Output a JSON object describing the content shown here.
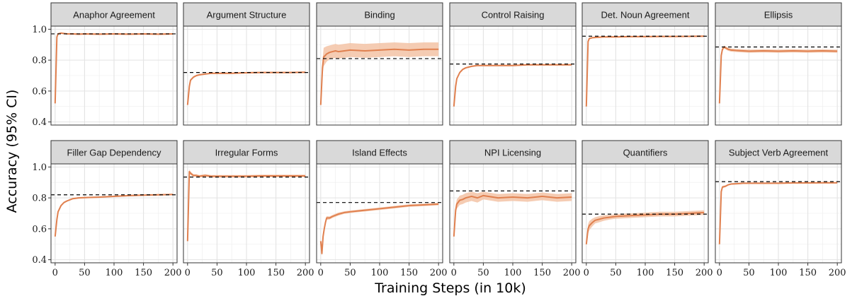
{
  "chart_data": {
    "type": "line",
    "layout": "facet-grid",
    "xlabel": "Training Steps (in 10k)",
    "ylabel": "Accuracy (95% CI)",
    "xlim": [
      -7,
      207
    ],
    "ylim": [
      0.38,
      1.02
    ],
    "x_ticks": [
      0,
      50,
      100,
      150,
      200
    ],
    "y_ticks": [
      0.4,
      0.6,
      0.8,
      1.0
    ],
    "y_tick_labels": [
      "0.4",
      "0.6",
      "0.8",
      "1.0"
    ],
    "grid": true,
    "line_color": "#e0804f",
    "band_color": "#f3c3a6",
    "reference_line_style": "dashed-black",
    "panels": [
      {
        "title": "Anaphor Agreement",
        "reference": 0.97,
        "x": [
          0,
          3,
          5,
          10,
          20,
          30,
          40,
          50,
          75,
          100,
          125,
          150,
          175,
          200
        ],
        "y": [
          0.52,
          0.95,
          0.97,
          0.975,
          0.97,
          0.97,
          0.968,
          0.97,
          0.968,
          0.97,
          0.968,
          0.97,
          0.968,
          0.97
        ],
        "ci": [
          0.005,
          0.01,
          0.005,
          0.005,
          0.005,
          0.005,
          0.005,
          0.005,
          0.005,
          0.005,
          0.005,
          0.005,
          0.005,
          0.005
        ]
      },
      {
        "title": "Argument Structure",
        "reference": 0.72,
        "x": [
          0,
          3,
          5,
          10,
          15,
          20,
          30,
          40,
          50,
          75,
          100,
          125,
          150,
          175,
          200
        ],
        "y": [
          0.51,
          0.63,
          0.67,
          0.69,
          0.7,
          0.705,
          0.71,
          0.715,
          0.715,
          0.715,
          0.718,
          0.72,
          0.72,
          0.72,
          0.722
        ],
        "ci": [
          0.005,
          0.01,
          0.008,
          0.005,
          0.005,
          0.005,
          0.005,
          0.005,
          0.005,
          0.005,
          0.005,
          0.005,
          0.005,
          0.005,
          0.005
        ]
      },
      {
        "title": "Binding",
        "reference": 0.81,
        "x": [
          0,
          3,
          5,
          10,
          15,
          20,
          25,
          30,
          40,
          50,
          75,
          100,
          125,
          150,
          175,
          200
        ],
        "y": [
          0.51,
          0.75,
          0.82,
          0.84,
          0.85,
          0.855,
          0.86,
          0.855,
          0.86,
          0.865,
          0.86,
          0.865,
          0.87,
          0.865,
          0.87,
          0.87
        ],
        "ci": [
          0.01,
          0.05,
          0.06,
          0.05,
          0.045,
          0.045,
          0.045,
          0.045,
          0.045,
          0.045,
          0.045,
          0.045,
          0.045,
          0.045,
          0.045,
          0.045
        ]
      },
      {
        "title": "Control Raising",
        "reference": 0.775,
        "x": [
          0,
          3,
          5,
          10,
          15,
          20,
          30,
          40,
          50,
          75,
          100,
          125,
          150,
          175,
          200
        ],
        "y": [
          0.5,
          0.63,
          0.68,
          0.72,
          0.74,
          0.75,
          0.76,
          0.765,
          0.765,
          0.765,
          0.765,
          0.77,
          0.77,
          0.77,
          0.77
        ],
        "ci": [
          0.005,
          0.01,
          0.008,
          0.006,
          0.005,
          0.005,
          0.005,
          0.005,
          0.005,
          0.005,
          0.005,
          0.005,
          0.005,
          0.005,
          0.005
        ]
      },
      {
        "title": "Det. Noun Agreement",
        "reference": 0.955,
        "x": [
          0,
          3,
          5,
          10,
          20,
          30,
          50,
          75,
          100,
          125,
          150,
          175,
          200
        ],
        "y": [
          0.5,
          0.92,
          0.94,
          0.945,
          0.948,
          0.95,
          0.95,
          0.952,
          0.952,
          0.953,
          0.953,
          0.954,
          0.955
        ],
        "ci": [
          0.005,
          0.01,
          0.006,
          0.005,
          0.005,
          0.005,
          0.005,
          0.005,
          0.005,
          0.005,
          0.005,
          0.005,
          0.005
        ]
      },
      {
        "title": "Ellipsis",
        "reference": 0.885,
        "x": [
          0,
          3,
          5,
          8,
          10,
          15,
          20,
          30,
          40,
          50,
          75,
          100,
          125,
          150,
          175,
          200
        ],
        "y": [
          0.52,
          0.83,
          0.87,
          0.885,
          0.88,
          0.87,
          0.865,
          0.862,
          0.86,
          0.858,
          0.86,
          0.858,
          0.86,
          0.858,
          0.86,
          0.858
        ],
        "ci": [
          0.01,
          0.015,
          0.012,
          0.01,
          0.01,
          0.01,
          0.01,
          0.01,
          0.01,
          0.01,
          0.01,
          0.01,
          0.01,
          0.01,
          0.01,
          0.01
        ]
      },
      {
        "title": "Filler Gap Dependency",
        "reference": 0.82,
        "x": [
          0,
          3,
          5,
          10,
          15,
          20,
          30,
          40,
          50,
          75,
          100,
          125,
          150,
          175,
          200
        ],
        "y": [
          0.55,
          0.66,
          0.71,
          0.75,
          0.77,
          0.78,
          0.795,
          0.8,
          0.802,
          0.805,
          0.81,
          0.815,
          0.818,
          0.82,
          0.822
        ],
        "ci": [
          0.005,
          0.01,
          0.008,
          0.006,
          0.005,
          0.005,
          0.005,
          0.005,
          0.005,
          0.005,
          0.005,
          0.005,
          0.005,
          0.005,
          0.005
        ]
      },
      {
        "title": "Irregular Forms",
        "reference": 0.935,
        "x": [
          0,
          3,
          5,
          8,
          10,
          15,
          20,
          30,
          40,
          50,
          75,
          100,
          125,
          150,
          175,
          200
        ],
        "y": [
          0.52,
          0.97,
          0.96,
          0.95,
          0.945,
          0.945,
          0.94,
          0.945,
          0.94,
          0.94,
          0.94,
          0.94,
          0.942,
          0.942,
          0.942,
          0.942
        ],
        "ci": [
          0.01,
          0.015,
          0.01,
          0.01,
          0.008,
          0.008,
          0.008,
          0.008,
          0.008,
          0.008,
          0.008,
          0.008,
          0.008,
          0.008,
          0.008,
          0.008
        ]
      },
      {
        "title": "Island Effects",
        "reference": 0.77,
        "x": [
          0,
          2,
          4,
          6,
          8,
          10,
          15,
          20,
          30,
          40,
          50,
          75,
          100,
          125,
          150,
          175,
          200
        ],
        "y": [
          0.52,
          0.44,
          0.55,
          0.6,
          0.64,
          0.67,
          0.67,
          0.68,
          0.695,
          0.705,
          0.71,
          0.72,
          0.73,
          0.74,
          0.75,
          0.755,
          0.76
        ],
        "ci": [
          0.015,
          0.015,
          0.02,
          0.015,
          0.015,
          0.012,
          0.01,
          0.01,
          0.01,
          0.008,
          0.008,
          0.008,
          0.008,
          0.008,
          0.008,
          0.008,
          0.008
        ]
      },
      {
        "title": "NPI Licensing",
        "reference": 0.845,
        "x": [
          0,
          3,
          5,
          10,
          15,
          20,
          25,
          30,
          40,
          50,
          75,
          100,
          125,
          150,
          175,
          200
        ],
        "y": [
          0.55,
          0.72,
          0.76,
          0.785,
          0.79,
          0.8,
          0.805,
          0.81,
          0.8,
          0.815,
          0.8,
          0.805,
          0.8,
          0.81,
          0.8,
          0.805
        ],
        "ci": [
          0.01,
          0.03,
          0.03,
          0.03,
          0.03,
          0.03,
          0.03,
          0.03,
          0.03,
          0.025,
          0.025,
          0.025,
          0.025,
          0.025,
          0.025,
          0.025
        ]
      },
      {
        "title": "Quantifiers",
        "reference": 0.695,
        "x": [
          0,
          3,
          5,
          10,
          15,
          20,
          30,
          40,
          50,
          75,
          100,
          125,
          150,
          175,
          200
        ],
        "y": [
          0.5,
          0.6,
          0.62,
          0.64,
          0.655,
          0.66,
          0.67,
          0.675,
          0.68,
          0.685,
          0.69,
          0.695,
          0.695,
          0.7,
          0.705
        ],
        "ci": [
          0.01,
          0.03,
          0.03,
          0.025,
          0.02,
          0.02,
          0.018,
          0.015,
          0.015,
          0.015,
          0.015,
          0.015,
          0.015,
          0.015,
          0.015
        ]
      },
      {
        "title": "Subject Verb Agreement",
        "reference": 0.905,
        "x": [
          0,
          3,
          5,
          10,
          15,
          20,
          30,
          40,
          50,
          75,
          100,
          125,
          150,
          175,
          200
        ],
        "y": [
          0.5,
          0.84,
          0.87,
          0.875,
          0.885,
          0.89,
          0.892,
          0.895,
          0.895,
          0.895,
          0.895,
          0.897,
          0.897,
          0.898,
          0.898
        ],
        "ci": [
          0.005,
          0.01,
          0.008,
          0.006,
          0.005,
          0.005,
          0.005,
          0.005,
          0.005,
          0.005,
          0.005,
          0.005,
          0.005,
          0.005,
          0.005
        ]
      }
    ]
  }
}
